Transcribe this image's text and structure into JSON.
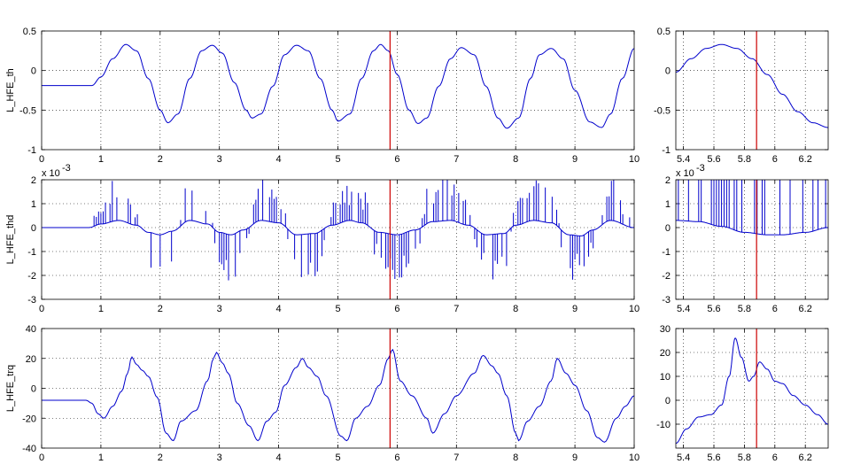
{
  "figure": {
    "background": "#ffffff",
    "axes_background": "#ffffff",
    "line_color": "#0000cc",
    "cursor_color": "#cc0000",
    "grid": true,
    "grid_style": "dotted"
  },
  "chart_data": [
    {
      "type": "line",
      "name": "th-main",
      "ylabel": "L_HFE_th",
      "xlim": [
        0,
        10
      ],
      "ylim": [
        -1,
        0.5
      ],
      "xticks": [
        "0",
        "1",
        "2",
        "3",
        "4",
        "5",
        "6",
        "7",
        "8",
        "9",
        "10"
      ],
      "yticks": [
        "-1",
        "-0.5",
        "0",
        "0.5"
      ],
      "cursor_x": 5.88,
      "series": [
        {
          "x": [
            0,
            0.5,
            0.85,
            1.0,
            1.2,
            1.42,
            1.6,
            1.8,
            2.0,
            2.13,
            2.3,
            2.5,
            2.7,
            2.88,
            3.05,
            3.25,
            3.45,
            3.55,
            3.7,
            3.9,
            4.1,
            4.3,
            4.5,
            4.7,
            4.9,
            5.0,
            5.2,
            5.4,
            5.6,
            5.72,
            5.85,
            6.0,
            6.2,
            6.35,
            6.5,
            6.7,
            6.9,
            7.08,
            7.3,
            7.5,
            7.7,
            7.85,
            8.05,
            8.25,
            8.4,
            8.6,
            8.8,
            9.0,
            9.25,
            9.45,
            9.6,
            9.8,
            10.0
          ],
          "values": [
            -0.19,
            -0.19,
            -0.19,
            -0.08,
            0.15,
            0.33,
            0.25,
            -0.1,
            -0.5,
            -0.66,
            -0.55,
            -0.1,
            0.25,
            0.32,
            0.22,
            -0.15,
            -0.5,
            -0.6,
            -0.55,
            -0.2,
            0.2,
            0.32,
            0.25,
            -0.1,
            -0.5,
            -0.64,
            -0.55,
            -0.1,
            0.25,
            0.33,
            0.25,
            -0.05,
            -0.5,
            -0.67,
            -0.6,
            -0.2,
            0.15,
            0.29,
            0.2,
            -0.2,
            -0.6,
            -0.73,
            -0.6,
            -0.1,
            0.2,
            0.28,
            0.15,
            -0.25,
            -0.65,
            -0.72,
            -0.55,
            -0.1,
            0.28
          ]
        }
      ]
    },
    {
      "type": "line",
      "name": "th-zoom",
      "xlim": [
        5.35,
        6.35
      ],
      "ylim": [
        -1,
        0.5
      ],
      "xticks": [
        "5.4",
        "5.6",
        "5.8",
        "6",
        "6.2"
      ],
      "yticks": [
        "-1",
        "-0.5",
        "0",
        "0.5"
      ],
      "cursor_x": 5.88,
      "series": [
        {
          "x": [
            5.35,
            5.45,
            5.55,
            5.65,
            5.75,
            5.85,
            5.95,
            6.05,
            6.15,
            6.25,
            6.35
          ],
          "values": [
            -0.02,
            0.15,
            0.28,
            0.33,
            0.28,
            0.15,
            -0.05,
            -0.3,
            -0.52,
            -0.66,
            -0.72
          ]
        }
      ]
    },
    {
      "type": "line",
      "name": "thd-main",
      "ylabel": "L_HFE_thd",
      "exponent_label": "x 10",
      "exponent_power": "-3",
      "xlim": [
        0,
        10
      ],
      "ylim": [
        -3,
        2
      ],
      "xticks": [
        "0",
        "1",
        "2",
        "3",
        "4",
        "5",
        "6",
        "7",
        "8",
        "9",
        "10"
      ],
      "yticks": [
        "-3",
        "-2",
        "-1",
        "0",
        "1",
        "2"
      ],
      "cursor_x": 5.88,
      "series": [
        {
          "x": [
            0,
            0.8,
            1.0,
            1.3,
            1.6,
            1.8,
            2.0,
            2.2,
            2.5,
            2.8,
            3.0,
            3.2,
            3.4,
            3.7,
            4.0,
            4.3,
            4.6,
            4.9,
            5.2,
            5.4,
            5.7,
            6.0,
            6.3,
            6.6,
            6.9,
            7.2,
            7.5,
            7.8,
            8.0,
            8.3,
            8.6,
            8.9,
            9.1,
            9.3,
            9.6,
            10.0
          ],
          "values": [
            0,
            0,
            0.15,
            0.3,
            0.1,
            -0.2,
            -0.3,
            -0.15,
            0.3,
            0.15,
            -0.2,
            -0.3,
            -0.1,
            0.3,
            0.2,
            -0.3,
            -0.25,
            0.1,
            0.3,
            0.2,
            -0.2,
            -0.3,
            -0.1,
            0.25,
            0.3,
            0.1,
            -0.3,
            -0.25,
            0.1,
            0.3,
            0.2,
            -0.3,
            -0.35,
            -0.1,
            0.3,
            0
          ]
        }
      ],
      "spike_peak_abs": 2
    },
    {
      "type": "line",
      "name": "thd-zoom",
      "exponent_label": "x 10",
      "exponent_power": "-3",
      "xlim": [
        5.35,
        6.35
      ],
      "ylim": [
        -3,
        2
      ],
      "xticks": [
        "5.4",
        "5.6",
        "5.8",
        "6",
        "6.2"
      ],
      "yticks": [
        "-3",
        "-2",
        "-1",
        "0",
        "1",
        "2"
      ],
      "cursor_x": 5.88,
      "series": [
        {
          "x": [
            5.35,
            5.5,
            5.65,
            5.8,
            5.95,
            6.05,
            6.2,
            6.35
          ],
          "values": [
            0.3,
            0.25,
            0.05,
            -0.2,
            -0.3,
            -0.3,
            -0.2,
            0
          ]
        }
      ]
    },
    {
      "type": "line",
      "name": "trq-main",
      "ylabel": "L_HFE_trq",
      "xlim": [
        0,
        10
      ],
      "ylim": [
        -40,
        40
      ],
      "xticks": [
        "0",
        "1",
        "2",
        "3",
        "4",
        "5",
        "6",
        "7",
        "8",
        "9",
        "10"
      ],
      "yticks": [
        "-40",
        "-20",
        "0",
        "20",
        "40"
      ],
      "cursor_x": 5.88,
      "series": [
        {
          "x": [
            0,
            0.75,
            0.85,
            0.95,
            1.05,
            1.2,
            1.35,
            1.45,
            1.52,
            1.6,
            1.7,
            1.8,
            1.95,
            2.1,
            2.22,
            2.35,
            2.6,
            2.8,
            2.9,
            2.95,
            3.05,
            3.15,
            3.3,
            3.5,
            3.65,
            3.8,
            3.95,
            4.1,
            4.3,
            4.4,
            4.5,
            4.65,
            4.8,
            5.05,
            5.15,
            5.3,
            5.5,
            5.7,
            5.85,
            5.92,
            6.05,
            6.25,
            6.5,
            6.6,
            6.8,
            7.0,
            7.3,
            7.45,
            7.6,
            7.7,
            7.85,
            8.0,
            8.05,
            8.2,
            8.4,
            8.6,
            8.7,
            8.85,
            9.0,
            9.2,
            9.38,
            9.5,
            9.7,
            9.85,
            10.0
          ],
          "values": [
            -8,
            -8,
            -10,
            -17,
            -20,
            -12,
            -2,
            10,
            21,
            16,
            12,
            8,
            -6,
            -30,
            -35,
            -22,
            -15,
            5,
            20,
            24,
            17,
            10,
            -10,
            -25,
            -35,
            -22,
            -16,
            2,
            14,
            20,
            14,
            8,
            -5,
            -32,
            -35,
            -20,
            -12,
            2,
            20,
            26,
            5,
            -5,
            -20,
            -30,
            -17,
            -5,
            10,
            22,
            15,
            10,
            -5,
            -30,
            -35,
            -22,
            -12,
            5,
            20,
            10,
            2,
            -15,
            -33,
            -36,
            -20,
            -12,
            -5
          ]
        }
      ]
    },
    {
      "type": "line",
      "name": "trq-zoom",
      "xlim": [
        5.35,
        6.35
      ],
      "ylim": [
        -20,
        30
      ],
      "xticks": [
        "5.4",
        "5.6",
        "5.8",
        "6",
        "6.2"
      ],
      "yticks": [
        "-10",
        "0",
        "10",
        "20",
        "30"
      ],
      "cursor_x": 5.88,
      "series": [
        {
          "x": [
            5.35,
            5.42,
            5.5,
            5.58,
            5.65,
            5.7,
            5.74,
            5.78,
            5.83,
            5.86,
            5.9,
            5.95,
            6.0,
            6.05,
            6.12,
            6.2,
            6.28,
            6.35
          ],
          "values": [
            -18,
            -12,
            -7,
            -6,
            -2,
            10,
            26,
            18,
            8,
            10,
            16,
            13,
            8,
            7,
            2,
            -2,
            -6,
            -10
          ]
        }
      ]
    }
  ]
}
